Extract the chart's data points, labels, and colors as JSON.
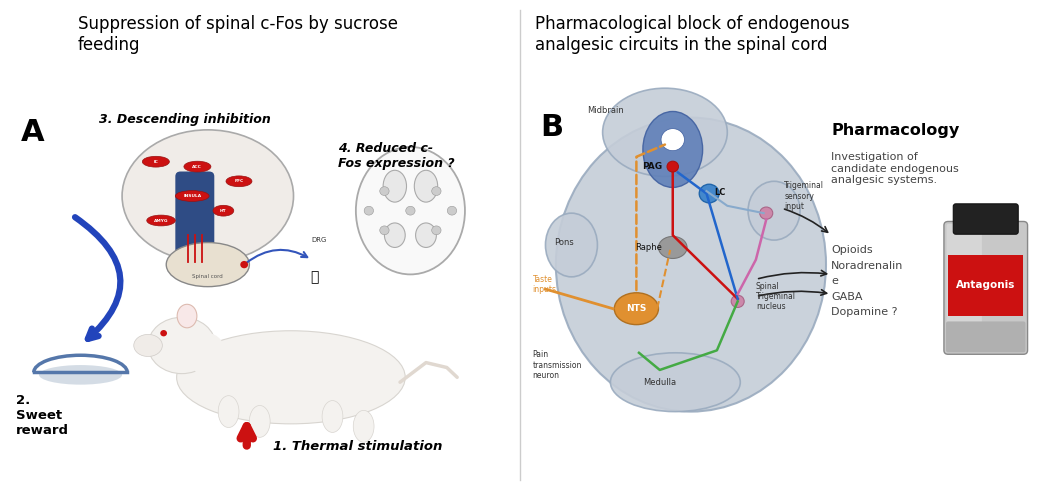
{
  "panel_A_title": "Suppression of spinal c-Fos by sucrose\nfeeding",
  "panel_B_title": "Pharmacological block of endogenous\nanalgesic circuits in the spinal cord",
  "panel_A_label": "A",
  "panel_B_label": "B",
  "label_A_text_1": "3. Descending inhibition",
  "label_A_text_2": "4. Reduced c-\nFos expression ?",
  "label_A_text_3": "2.\nSweet\nreward",
  "label_A_text_4": "1. Thermal stimulation",
  "label_B_pharmacology": "Pharmacology",
  "label_B_investigation": "Investigation of\ncandidate endogenous\nanalgesic systems.",
  "label_B_opioids": "Opioids\nNoradrenalin\ne\nGABA\nDopamine ?",
  "label_B_antagonis": "Antagonis",
  "label_B_midbrain": "Midbrain",
  "label_B_pons": "Pons",
  "label_B_pag": "PAG",
  "label_B_lc": "LC",
  "label_B_raphe": "Raphe",
  "label_B_nts": "NTS",
  "label_B_medulla": "Medulla",
  "label_B_trigeminal_sensory": "Trigeminal\nsensory\ninput",
  "label_B_spinal_trigeminal": "Spinal\nTrigeminal\nnucleus",
  "label_B_taste_inputs": "Taste\ninputs",
  "label_B_pain_transmission": "Pain\ntransmission\nneuron",
  "bg_color": "#ffffff",
  "title_fontsize": 12,
  "label_fontsize": 22
}
